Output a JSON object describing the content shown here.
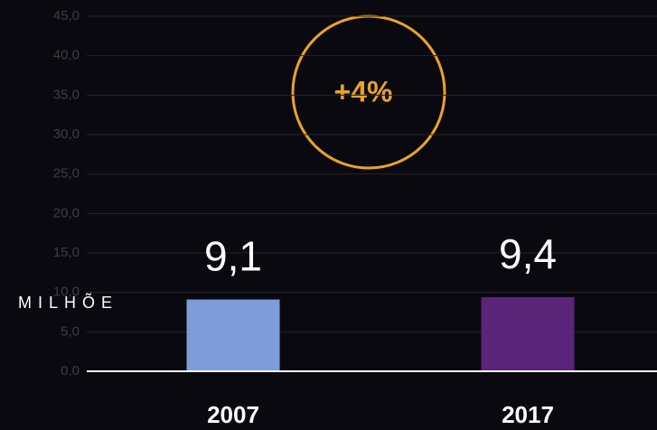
{
  "chart_data": {
    "type": "bar",
    "categories": [
      "2007",
      "2017"
    ],
    "values": [
      9.1,
      9.4
    ],
    "value_labels": [
      "9,1",
      "9,4"
    ],
    "colors": [
      "#7f9bd8",
      "#5a2479"
    ],
    "y_label": "MILHÕE",
    "annotation": "+4%",
    "ylim": [
      0,
      45
    ],
    "yticks": [
      {
        "value": 0,
        "label": "0,0"
      },
      {
        "value": 5,
        "label": "5,0"
      },
      {
        "value": 10,
        "label": "10,0"
      },
      {
        "value": 15,
        "label": "15,0"
      },
      {
        "value": 20,
        "label": "20,0"
      },
      {
        "value": 25,
        "label": "25,0"
      },
      {
        "value": 30,
        "label": "30,0"
      },
      {
        "value": 35,
        "label": "35,0"
      },
      {
        "value": 40,
        "label": "40,0"
      },
      {
        "value": 45,
        "label": "45,0"
      }
    ],
    "grid": true
  }
}
